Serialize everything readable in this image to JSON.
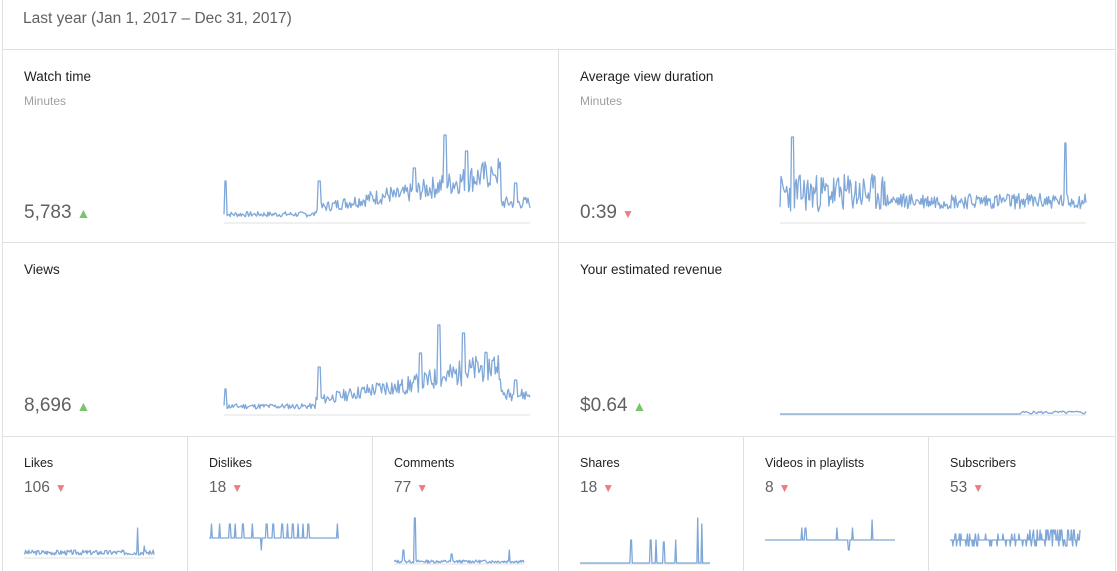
{
  "range_label": "Last year (Jan 1, 2017 – Dec 31, 2017)",
  "colors": {
    "sparkline": "#7fa7d8",
    "trend_up": "#7cc46b",
    "trend_down": "#ef7c7c"
  },
  "large_cards": [
    {
      "id": "watch-time",
      "title": "Watch time",
      "unit": "Minutes",
      "value": "5,783",
      "trend": "up",
      "trend_icon": "triangle-up-icon"
    },
    {
      "id": "avg-view-duration",
      "title": "Average view duration",
      "unit": "Minutes",
      "value": "0:39",
      "trend": "down",
      "trend_icon": "triangle-down-icon"
    },
    {
      "id": "views",
      "title": "Views",
      "unit": "",
      "value": "8,696",
      "trend": "up",
      "trend_icon": "triangle-up-icon"
    },
    {
      "id": "revenue",
      "title": "Your estimated revenue",
      "unit": "",
      "value": "$0.64",
      "trend": "up",
      "trend_icon": "triangle-up-icon"
    }
  ],
  "small_cards": [
    {
      "id": "likes",
      "title": "Likes",
      "value": "106",
      "trend": "down"
    },
    {
      "id": "dislikes",
      "title": "Dislikes",
      "value": "18",
      "trend": "down"
    },
    {
      "id": "comments",
      "title": "Comments",
      "value": "77",
      "trend": "down"
    },
    {
      "id": "shares",
      "title": "Shares",
      "value": "18",
      "trend": "down"
    },
    {
      "id": "videos-in-playlists",
      "title": "Videos in playlists",
      "value": "8",
      "trend": "down"
    },
    {
      "id": "subscribers",
      "title": "Subscribers",
      "value": "53",
      "trend": "down"
    }
  ],
  "glyphs": {
    "up": "▲",
    "down": "▼"
  }
}
